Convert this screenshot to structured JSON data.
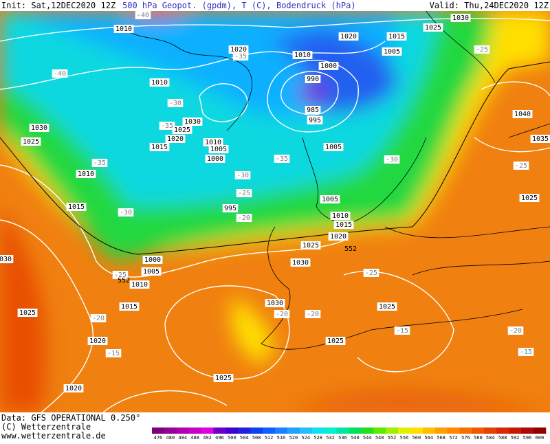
{
  "header": {
    "init": "Init: Sat,12DEC2020 12Z",
    "title": "500 hPa Geopot. (gpdm), T (C), Bodendruck (hPa)",
    "valid": "Valid: Thu,24DEC2020 12Z"
  },
  "footer": {
    "source": "Data: GFS OPERATIONAL 0.250°",
    "copyright": "(C) Wetterzentrale",
    "url": "www.wetterzentrale.de"
  },
  "colorbar": {
    "levels": [
      476,
      480,
      484,
      488,
      492,
      496,
      500,
      504,
      508,
      512,
      516,
      520,
      524,
      528,
      532,
      536,
      540,
      544,
      548,
      552,
      556,
      560,
      564,
      568,
      572,
      576,
      580,
      584,
      588,
      592,
      596,
      600
    ],
    "colors": [
      "#7a007a",
      "#950095",
      "#b000b0",
      "#c800c8",
      "#e000e0",
      "#6a00c8",
      "#4000d0",
      "#2020e0",
      "#1040f0",
      "#1060ff",
      "#1a80ff",
      "#20a0ff",
      "#20c0ff",
      "#10e0f0",
      "#00f0d0",
      "#00e8a0",
      "#00e060",
      "#20e020",
      "#60e800",
      "#a0f000",
      "#e0f000",
      "#ffe000",
      "#ffc000",
      "#ffa000",
      "#ff8800",
      "#f87000",
      "#f05800",
      "#e84000",
      "#d82800",
      "#c81800",
      "#b00808",
      "#900000"
    ]
  },
  "isobar_labels": [
    "1010",
    "1020",
    "1015",
    "1025",
    "1030",
    "1020",
    "1005",
    "1010",
    "1000",
    "990",
    "985",
    "995",
    "1010",
    "1030",
    "1025",
    "1020",
    "1015",
    "1010",
    "1005",
    "1000",
    "1030",
    "1025",
    "1010",
    "1015",
    "995",
    "1005",
    "1005",
    "1010",
    "1015",
    "1020",
    "1025",
    "1030",
    "1000",
    "1005",
    "1010",
    "1015",
    "1025",
    "1020",
    "1025",
    "1020",
    "1030",
    "1025",
    "1025",
    "1040",
    "1035",
    "1025",
    "030"
  ],
  "temperature_labels": [
    "-40",
    "-40",
    "-35",
    "-30",
    "-35",
    "-35",
    "-30",
    "-25",
    "-30",
    "-25",
    "-20",
    "-35",
    "-30",
    "-25",
    "-25",
    "-25",
    "-20",
    "-20",
    "-20",
    "-15",
    "-15",
    "-20",
    "-15"
  ],
  "contour_labels": [
    "552",
    "552"
  ]
}
